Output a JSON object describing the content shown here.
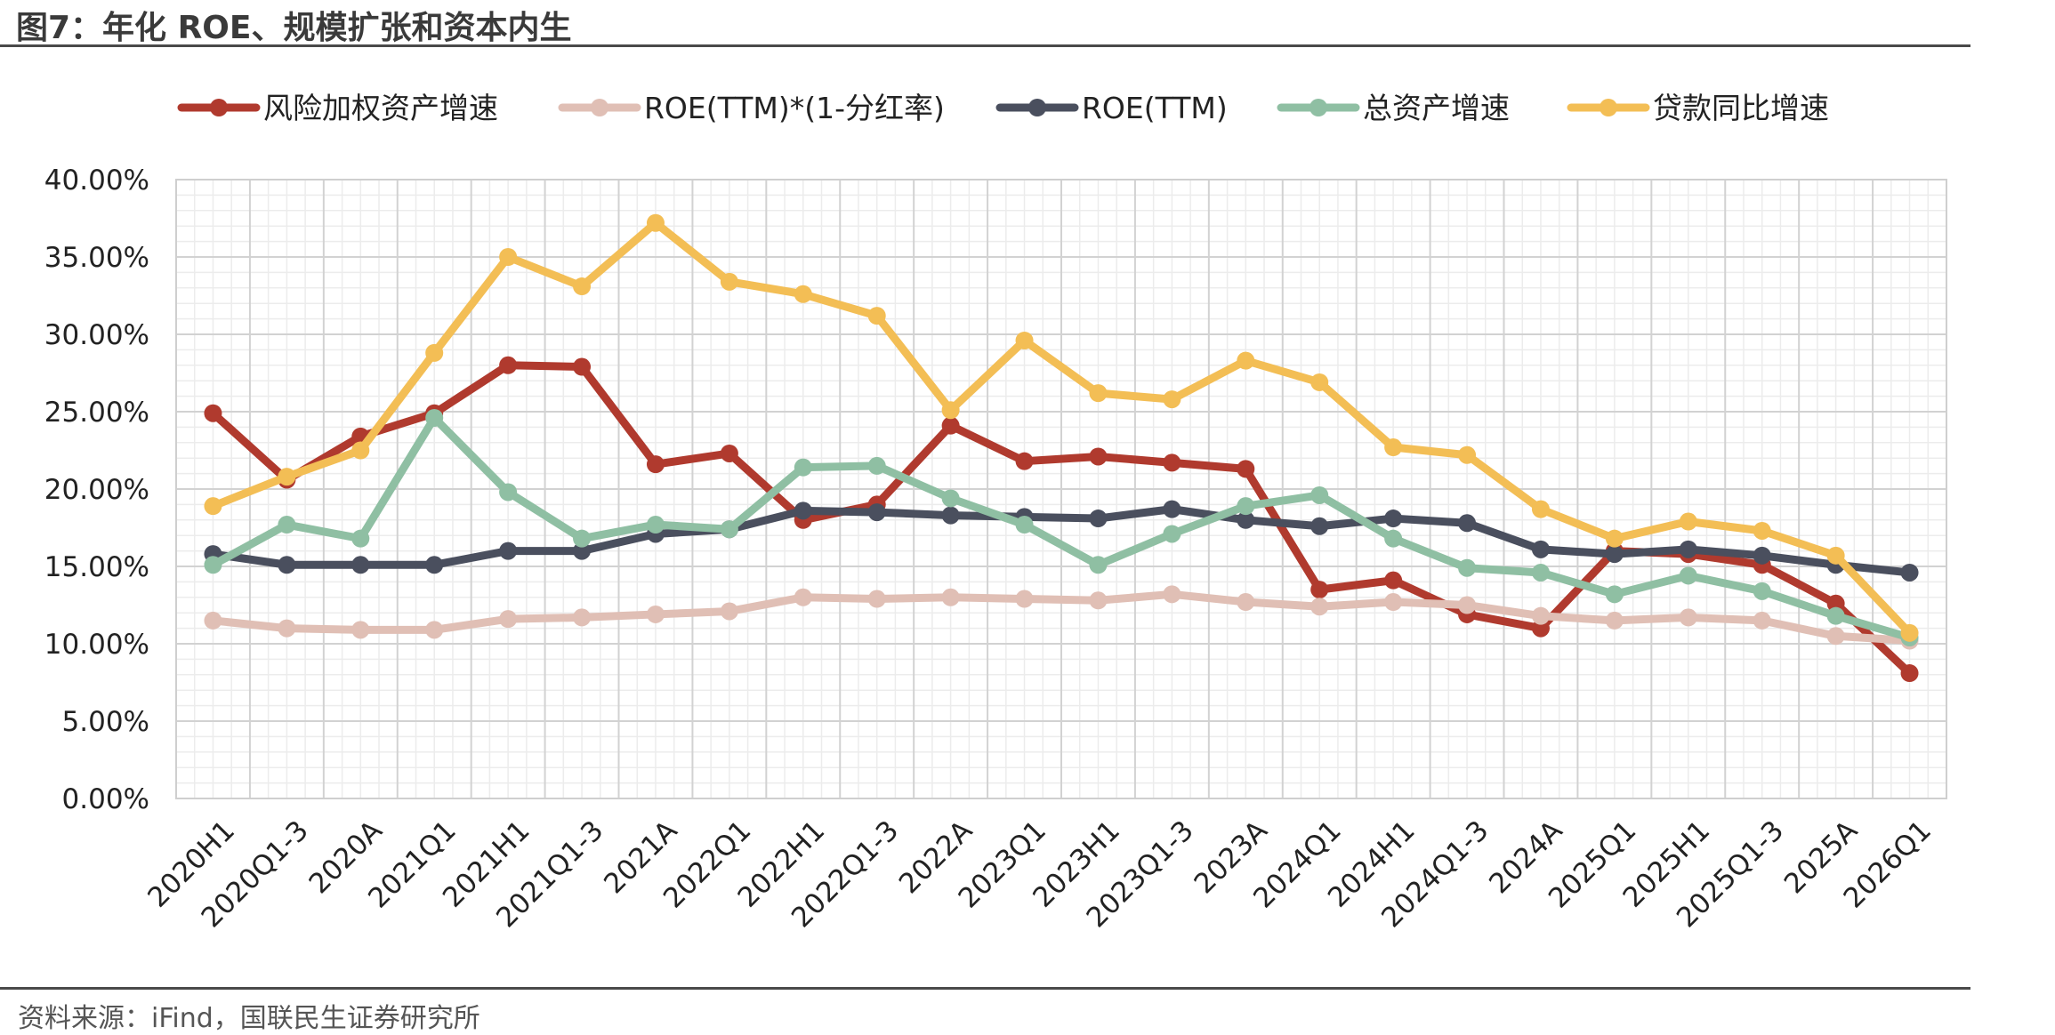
{
  "header": {
    "title": "图7：年化 ROE、规模扩张和资本内生"
  },
  "footer": {
    "source": "资料来源：iFind，国联民生证券研究所"
  },
  "chart_data": {
    "type": "line",
    "title": "",
    "xlabel": "",
    "ylabel": "",
    "ylim": [
      0,
      40
    ],
    "y_ticks": [
      "0.00%",
      "5.00%",
      "10.00%",
      "15.00%",
      "20.00%",
      "25.00%",
      "30.00%",
      "35.00%",
      "40.00%"
    ],
    "grid": true,
    "legend_position": "top",
    "categories": [
      "2020H1",
      "2020Q1-3",
      "2020A",
      "2021Q1",
      "2021H1",
      "2021Q1-3",
      "2021A",
      "2022Q1",
      "2022H1",
      "2022Q1-3",
      "2022A",
      "2023Q1",
      "2023H1",
      "2023Q1-3",
      "2023A",
      "2024Q1",
      "2024H1",
      "2024Q1-3",
      "2024A",
      "2025Q1",
      "2025H1",
      "2025Q1-3",
      "2025A",
      "2026Q1"
    ],
    "series": [
      {
        "name": "风险加权资产增速",
        "color": "#b03a2e",
        "values": [
          24.9,
          20.6,
          23.4,
          24.9,
          28.0,
          27.9,
          21.6,
          22.3,
          18.0,
          19.0,
          24.1,
          21.8,
          22.1,
          21.7,
          21.3,
          13.5,
          14.1,
          11.9,
          11.0,
          16.0,
          15.8,
          15.1,
          12.6,
          8.1
        ]
      },
      {
        "name": "ROE(TTM)*(1-分红率)",
        "color": "#e0bfb5",
        "values": [
          11.5,
          11.0,
          10.9,
          10.9,
          11.6,
          11.7,
          11.9,
          12.1,
          13.0,
          12.9,
          13.0,
          12.9,
          12.8,
          13.2,
          12.7,
          12.4,
          12.7,
          12.5,
          11.8,
          11.5,
          11.7,
          11.5,
          10.5,
          10.2
        ]
      },
      {
        "name": "ROE(TTM)",
        "color": "#4a4f5e",
        "values": [
          15.8,
          15.1,
          15.1,
          15.1,
          16.0,
          16.0,
          17.1,
          17.4,
          18.6,
          18.5,
          18.3,
          18.2,
          18.1,
          18.7,
          18.0,
          17.6,
          18.1,
          17.8,
          16.1,
          15.8,
          16.1,
          15.7,
          15.1,
          14.6
        ]
      },
      {
        "name": "总资产增速",
        "color": "#8fbfa3",
        "values": [
          15.1,
          17.7,
          16.8,
          24.6,
          19.8,
          16.8,
          17.7,
          17.4,
          21.4,
          21.5,
          19.4,
          17.7,
          15.1,
          17.1,
          18.9,
          19.6,
          16.8,
          14.9,
          14.6,
          13.2,
          14.4,
          13.4,
          11.8,
          10.4
        ]
      },
      {
        "name": "贷款同比增速",
        "color": "#f3be55",
        "values": [
          18.9,
          20.8,
          22.5,
          28.8,
          35.0,
          33.1,
          37.2,
          33.4,
          32.6,
          31.2,
          25.1,
          29.6,
          26.2,
          25.8,
          28.3,
          26.9,
          22.7,
          22.2,
          18.7,
          16.8,
          17.9,
          17.3,
          15.7,
          10.7
        ]
      }
    ]
  }
}
